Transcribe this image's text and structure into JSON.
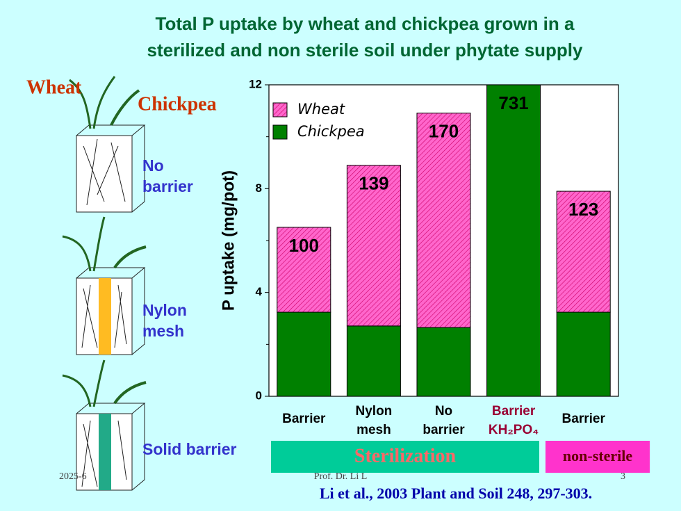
{
  "header": {
    "title_lines": [
      "Total P uptake by wheat and chickpea grown in a",
      "sterilized and non sterile soil under phytate supply"
    ]
  },
  "plants": {
    "wheat": "Wheat",
    "chickpea": "Chickpea"
  },
  "treatments": [
    [
      "No",
      "barrier"
    ],
    [
      "Nylon",
      "mesh"
    ],
    [
      "Solid barrier"
    ]
  ],
  "chart_data": {
    "type": "stacked_bar",
    "ylabel": "P uptake (mg/pot)",
    "categories": [
      [
        "Barrier"
      ],
      [
        "Nylon",
        "mesh"
      ],
      [
        "No",
        "barrier"
      ],
      [
        "Barrier",
        "KH₂PO₄"
      ],
      [
        "Barrier"
      ]
    ],
    "category_colors": [
      "#000000",
      "#000000",
      "#000000",
      "#990033",
      "#000000"
    ],
    "series": [
      {
        "name": "Chickpea",
        "color": "#008000",
        "values": [
          3.24,
          2.71,
          2.65,
          12.0,
          3.24
        ]
      },
      {
        "name": "Wheat",
        "color": "#ff66cc",
        "values": [
          3.27,
          6.19,
          8.26,
          0,
          4.66
        ]
      }
    ],
    "legend_order": [
      1,
      0
    ],
    "bar_annotations": [
      "100",
      "139",
      "170",
      "731",
      "123"
    ],
    "ylim": [
      0,
      12
    ],
    "yticks": [
      0,
      4,
      8,
      12
    ],
    "groups": [
      {
        "label": "Sterilization",
        "color": "#00cc99",
        "text_color": "#ff6666"
      },
      {
        "label": "non-sterile",
        "color": "#ff33cc",
        "text_color": "#660000"
      }
    ]
  },
  "footer": {
    "date": "2025-6",
    "author": "Prof. Dr. Li L",
    "page": "3",
    "citation": "Li et al., 2003 Plant and Soil 248, 297-303."
  }
}
